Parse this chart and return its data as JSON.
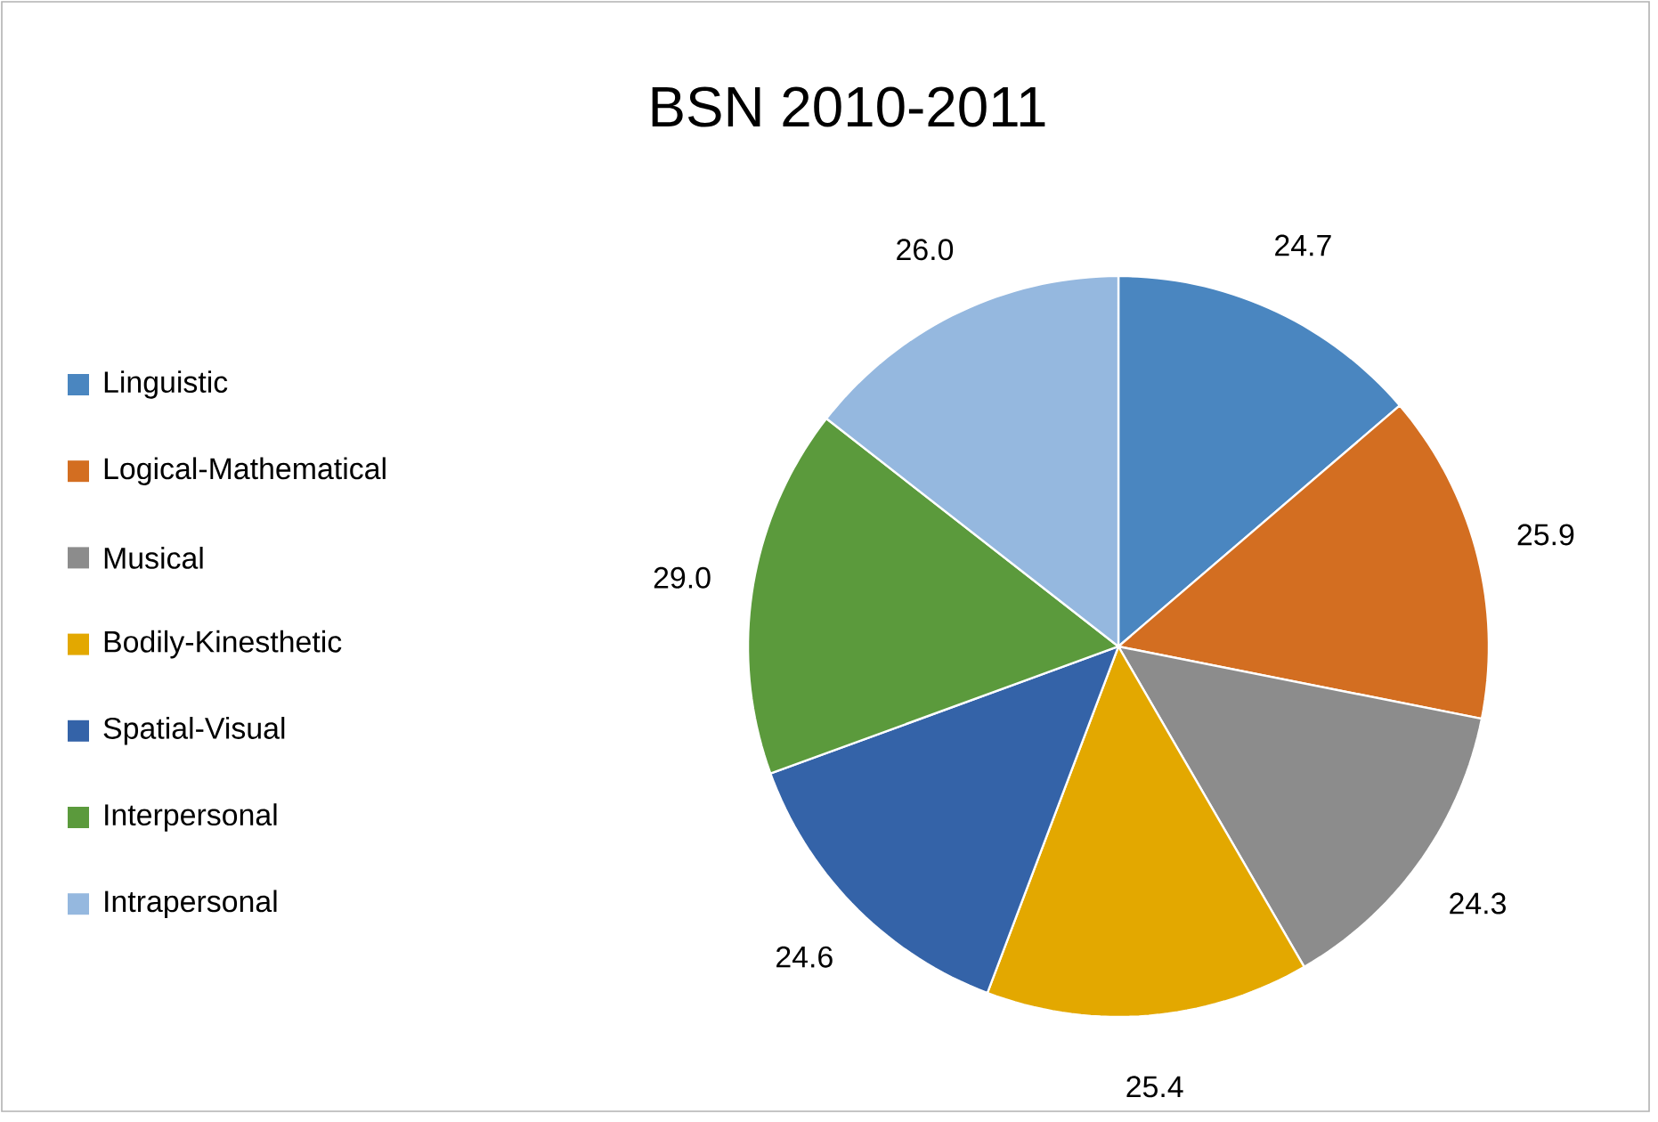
{
  "chart_data": {
    "type": "pie",
    "title": "BSN 2010-2011",
    "categories": [
      "Linguistic",
      "Logical-Mathematical",
      "Musical",
      "Bodily-Kinesthetic",
      "Spatial-Visual",
      "Interpersonal",
      "Intrapersonal"
    ],
    "values": [
      24.7,
      25.9,
      24.3,
      25.4,
      24.6,
      29.0,
      26.0
    ],
    "colors": [
      "#4a86c0",
      "#d36e21",
      "#8c8c8c",
      "#e3a800",
      "#3463a8",
      "#5b9a3c",
      "#95b8df"
    ],
    "value_labels": [
      "24.7",
      "25.9",
      "24.3",
      "25.4",
      "24.6",
      "29.0",
      "26.0"
    ],
    "legend": "left"
  }
}
